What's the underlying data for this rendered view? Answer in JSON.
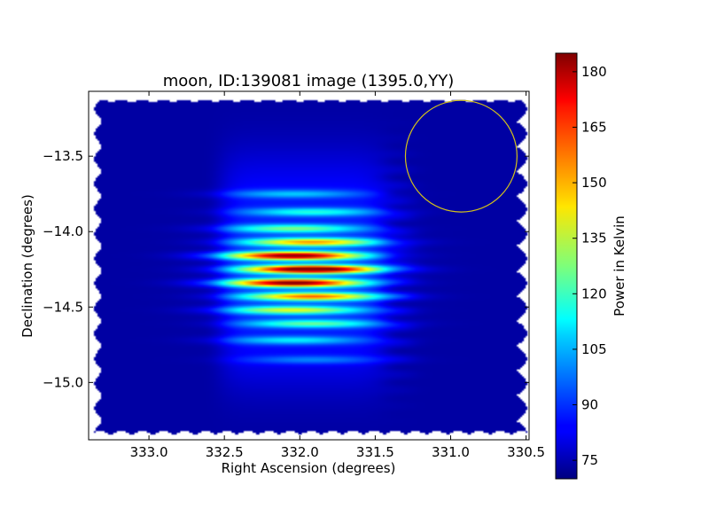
{
  "chart_data": {
    "type": "heatmap",
    "title": "moon, ID:139081 image (1395.0,YY)",
    "xlabel": "Right Ascension (degrees)",
    "ylabel": "Declination (degrees)",
    "xlim": [
      333.4,
      330.48
    ],
    "ylim": [
      -15.38,
      -13.07
    ],
    "x_ticks": [
      {
        "value": 333.0,
        "label": "333.0"
      },
      {
        "value": 332.5,
        "label": "332.5"
      },
      {
        "value": 332.0,
        "label": "332.0"
      },
      {
        "value": 331.5,
        "label": "331.5"
      },
      {
        "value": 331.0,
        "label": "331.0"
      },
      {
        "value": 330.5,
        "label": "330.5"
      }
    ],
    "y_ticks": [
      {
        "value": -13.5,
        "label": "−13.5"
      },
      {
        "value": -14.0,
        "label": "−14.0"
      },
      {
        "value": -14.5,
        "label": "−14.5"
      },
      {
        "value": -15.0,
        "label": "−15.0"
      }
    ],
    "colorbar": {
      "label": "Power in Kelvin",
      "range": [
        70,
        185
      ],
      "colormap": "jet",
      "ticks": [
        {
          "value": 75,
          "label": "75"
        },
        {
          "value": 90,
          "label": "90"
        },
        {
          "value": 105,
          "label": "105"
        },
        {
          "value": 120,
          "label": "120"
        },
        {
          "value": 135,
          "label": "135"
        },
        {
          "value": 150,
          "label": "150"
        },
        {
          "value": 165,
          "label": "165"
        },
        {
          "value": 180,
          "label": "180"
        }
      ]
    },
    "map_extent": {
      "ra": [
        333.33,
        330.53
      ],
      "dec": [
        -15.35,
        -13.12
      ]
    },
    "background_level": 74,
    "peak_center": {
      "ra": 331.98,
      "dec": -14.25
    },
    "peak_value": 183,
    "fringe_rows_dec": [
      -13.75,
      -13.87,
      -13.98,
      -14.07,
      -14.16,
      -14.25,
      -14.34,
      -14.43,
      -14.52,
      -14.61,
      -14.72,
      -14.85
    ],
    "fringe_amplitudes": [
      22,
      30,
      40,
      66,
      100,
      110,
      100,
      72,
      52,
      38,
      26,
      16
    ],
    "reference_circle": {
      "ra": 330.93,
      "dec": -13.5,
      "radius_deg": 0.37,
      "color": "#d4c21a"
    }
  }
}
